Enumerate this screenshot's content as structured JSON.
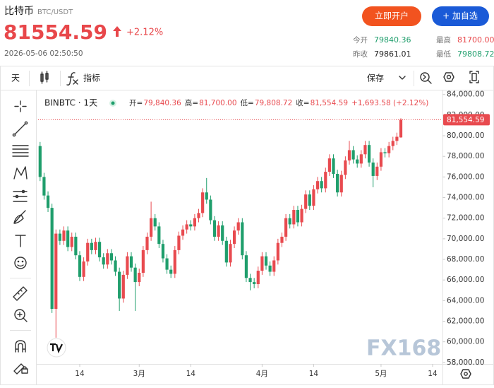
{
  "header": {
    "name": "比特币",
    "pair": "BTC/USDT",
    "price": "81554.59",
    "change": "+2.12%",
    "time": "2026-05-06 02:50:50",
    "buttons": [
      "立即开户",
      "+ 加自选"
    ],
    "stats": [
      {
        "label": "今开",
        "value": "79840.36"
      },
      {
        "label": "最高",
        "value": "81700.00"
      },
      {
        "label": "昨收",
        "value": "79861.01"
      },
      {
        "label": "最低",
        "value": "79808.72"
      }
    ]
  },
  "toolbar": {
    "interval": "天",
    "indicators": "指标",
    "save": "保存"
  },
  "chart_data": {
    "type": "candlestick",
    "symbol": "BINBTC · 1天",
    "ohlc_legend": [
      {
        "label": "开=",
        "value": "79,840.36"
      },
      {
        "label": "高=",
        "value": "81,700.00"
      },
      {
        "label": "低=",
        "value": "79,808.72"
      },
      {
        "label": "收=",
        "value": "81,554.59"
      }
    ],
    "change_label": "+1,693.58 (+2.12%)",
    "up_color": "#e84a4f",
    "down_color": "#1f9e6c",
    "open": [
      79000,
      76000,
      74200,
      73000,
      63200,
      70500,
      69800,
      70800,
      69200,
      70200,
      68400,
      66300,
      67800,
      69600,
      68900,
      69700,
      68200,
      67500,
      68600,
      67900,
      66800,
      64200,
      66500,
      68300,
      67200,
      65800,
      66700,
      68900,
      70200,
      72000,
      71200,
      69500,
      68100,
      67000,
      66600,
      68900,
      70300,
      70900,
      71400,
      71200,
      72000,
      72500,
      74500,
      73800,
      71800,
      70200,
      71300,
      69800,
      67700,
      69500,
      70800,
      71600,
      68400,
      66200,
      65800,
      65600,
      66900,
      68300,
      67400,
      66800,
      67900,
      69600,
      70200,
      72000,
      71400,
      72800,
      71600,
      72900,
      74300,
      73200,
      74800,
      75600,
      74900,
      76500,
      77800,
      76300,
      74500,
      76200,
      77600,
      78600,
      77700,
      77300,
      78200,
      79100,
      77400,
      76100,
      77000,
      78400,
      78300,
      79000,
      79500,
      79840.36
    ],
    "high": [
      79400,
      76400,
      74600,
      73400,
      70900,
      70900,
      71200,
      71200,
      70600,
      70600,
      68800,
      68200,
      70000,
      70000,
      70100,
      70100,
      68600,
      69000,
      69000,
      68300,
      67200,
      66900,
      68700,
      68700,
      67600,
      67100,
      69300,
      70600,
      73600,
      72400,
      71600,
      69900,
      68500,
      67400,
      69300,
      70700,
      71300,
      71800,
      71800,
      72400,
      72900,
      74900,
      75900,
      74200,
      72200,
      71700,
      71700,
      70200,
      69900,
      71200,
      72000,
      72000,
      68800,
      66600,
      66200,
      67300,
      68700,
      68700,
      67800,
      68300,
      70000,
      70600,
      72400,
      72400,
      73200,
      73200,
      73300,
      74700,
      74700,
      75200,
      76000,
      76000,
      76900,
      78200,
      78200,
      76700,
      76600,
      78000,
      79500,
      79000,
      78100,
      78600,
      79500,
      79500,
      77800,
      77400,
      78800,
      78800,
      79400,
      79900,
      80300,
      81700
    ],
    "low": [
      75600,
      73800,
      72600,
      62800,
      60400,
      69400,
      69400,
      68800,
      68800,
      68000,
      65900,
      65900,
      67400,
      68500,
      68500,
      67800,
      67100,
      67100,
      67500,
      66400,
      63000,
      63800,
      66100,
      66800,
      63000,
      65400,
      66300,
      68500,
      69800,
      70800,
      69100,
      67700,
      66600,
      66200,
      66200,
      68500,
      69900,
      70500,
      70800,
      70800,
      71600,
      72100,
      73400,
      71400,
      69800,
      69800,
      69400,
      67300,
      67300,
      69100,
      70400,
      68000,
      65800,
      65000,
      65200,
      65200,
      66500,
      67000,
      66400,
      66400,
      67500,
      69200,
      69800,
      71000,
      71000,
      71200,
      71200,
      72500,
      72800,
      72800,
      74400,
      74500,
      74500,
      76100,
      75900,
      74100,
      74100,
      75800,
      77200,
      77300,
      76900,
      76900,
      77800,
      77000,
      75000,
      75700,
      76600,
      77900,
      77900,
      78600,
      79100,
      79808.72
    ],
    "close": [
      76000,
      74200,
      73000,
      63200,
      70500,
      69800,
      70800,
      69200,
      70200,
      68400,
      66300,
      67800,
      69600,
      68900,
      69700,
      68200,
      67500,
      68600,
      67900,
      66800,
      64200,
      66500,
      68300,
      67200,
      65800,
      66700,
      68900,
      70200,
      72000,
      71200,
      69500,
      68100,
      67000,
      66600,
      68900,
      70300,
      70900,
      71400,
      71200,
      72000,
      72500,
      74500,
      73800,
      71800,
      70200,
      71300,
      69800,
      67700,
      69500,
      70800,
      71600,
      68400,
      66200,
      65800,
      65600,
      66900,
      68300,
      67400,
      66800,
      67900,
      69600,
      70200,
      72000,
      71400,
      72800,
      71600,
      72900,
      74300,
      73200,
      74800,
      75600,
      74900,
      76500,
      77800,
      76300,
      74500,
      76200,
      77600,
      78600,
      77700,
      77300,
      78200,
      79100,
      77400,
      76100,
      77000,
      78400,
      78300,
      79000,
      79500,
      79900,
      81554.59
    ],
    "xlim": [
      -0.5,
      101.5
    ],
    "xticks": [
      {
        "value": 10,
        "label": "14"
      },
      {
        "value": 25,
        "label": "3月"
      },
      {
        "value": 38,
        "label": "14"
      },
      {
        "value": 56,
        "label": "4月"
      },
      {
        "value": 69,
        "label": "14"
      },
      {
        "value": 86,
        "label": "5月"
      },
      {
        "value": 99,
        "label": "14"
      }
    ],
    "ylim": [
      57850,
      84600
    ],
    "yticks": [
      {
        "value": 58000,
        "label": "58,000.00"
      },
      {
        "value": 60000,
        "label": "60,000.00"
      },
      {
        "value": 62000,
        "label": "62,000.00"
      },
      {
        "value": 64000,
        "label": "64,000.00"
      },
      {
        "value": 66000,
        "label": "66,000.00"
      },
      {
        "value": 68000,
        "label": "68,000.00"
      },
      {
        "value": 70000,
        "label": "70,000.00"
      },
      {
        "value": 72000,
        "label": "72,000.00"
      },
      {
        "value": 74000,
        "label": "74,000.00"
      },
      {
        "value": 76000,
        "label": "76,000.00"
      },
      {
        "value": 78000,
        "label": "78,000.00"
      },
      {
        "value": 80000,
        "label": "80,000.00"
      },
      {
        "value": 82000,
        "label": "82,000.00"
      },
      {
        "value": 84000,
        "label": "84,000.00"
      }
    ],
    "price_line": {
      "value": 81554.59,
      "label": "81,554.59"
    },
    "grid": false,
    "watermark": "FX168"
  }
}
